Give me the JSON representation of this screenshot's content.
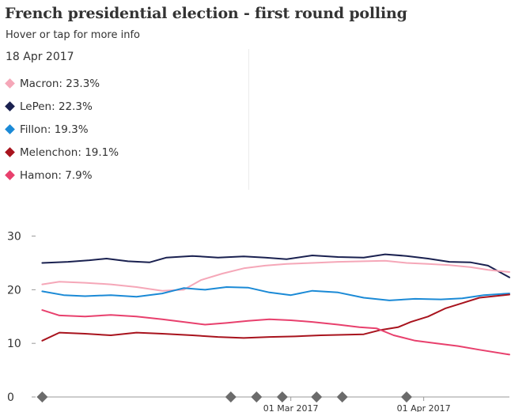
{
  "header": {
    "title": "French presidential election - first round polling",
    "subtitle": "Hover or tap for more info",
    "date": "18 Apr 2017"
  },
  "legend": [
    {
      "name": "Macron",
      "label": "Macron: 23.3%",
      "color": "#f5a7b8"
    },
    {
      "name": "LePen",
      "label": "LePen: 22.3%",
      "color": "#1a2150"
    },
    {
      "name": "Fillon",
      "label": "Fillon: 19.3%",
      "color": "#1b8ad6"
    },
    {
      "name": "Melenchon",
      "label": "Melenchon: 19.1%",
      "color": "#a8131d"
    },
    {
      "name": "Hamon",
      "label": "Hamon: 7.9%",
      "color": "#e8406d"
    }
  ],
  "chart_data": {
    "type": "line",
    "ylim": [
      0,
      32
    ],
    "yticks": [
      "0",
      "10",
      "20",
      "30"
    ],
    "xlim": [
      "2017-01-01",
      "2017-04-21"
    ],
    "xticks": [
      {
        "date": "2017-03-01",
        "label": "01 Mar 2017"
      },
      {
        "date": "2017-04-01",
        "label": "01 Apr 2017"
      }
    ],
    "event_markers": [
      "2017-01-02",
      "2017-02-15",
      "2017-02-21",
      "2017-02-27",
      "2017-03-07",
      "2017-03-13",
      "2017-03-28"
    ],
    "series": [
      {
        "name": "LePen",
        "color": "#1a2150",
        "points": [
          [
            "2017-01-02",
            25.0
          ],
          [
            "2017-01-08",
            25.2
          ],
          [
            "2017-01-13",
            25.5
          ],
          [
            "2017-01-17",
            25.8
          ],
          [
            "2017-01-22",
            25.3
          ],
          [
            "2017-01-27",
            25.1
          ],
          [
            "2017-01-31",
            26.0
          ],
          [
            "2017-02-06",
            26.3
          ],
          [
            "2017-02-12",
            26.0
          ],
          [
            "2017-02-18",
            26.2
          ],
          [
            "2017-02-23",
            26.0
          ],
          [
            "2017-02-28",
            25.7
          ],
          [
            "2017-03-06",
            26.4
          ],
          [
            "2017-03-12",
            26.1
          ],
          [
            "2017-03-18",
            26.0
          ],
          [
            "2017-03-23",
            26.6
          ],
          [
            "2017-03-28",
            26.3
          ],
          [
            "2017-04-02",
            25.8
          ],
          [
            "2017-04-07",
            25.2
          ],
          [
            "2017-04-12",
            25.1
          ],
          [
            "2017-04-16",
            24.5
          ],
          [
            "2017-04-21",
            22.3
          ]
        ]
      },
      {
        "name": "Macron",
        "color": "#f5a7b8",
        "points": [
          [
            "2017-01-02",
            21.0
          ],
          [
            "2017-01-06",
            21.5
          ],
          [
            "2017-01-12",
            21.3
          ],
          [
            "2017-01-18",
            21.0
          ],
          [
            "2017-01-24",
            20.5
          ],
          [
            "2017-01-30",
            19.8
          ],
          [
            "2017-02-04",
            20.0
          ],
          [
            "2017-02-08",
            21.8
          ],
          [
            "2017-02-13",
            23.0
          ],
          [
            "2017-02-18",
            24.0
          ],
          [
            "2017-02-23",
            24.5
          ],
          [
            "2017-02-28",
            24.8
          ],
          [
            "2017-03-06",
            25.0
          ],
          [
            "2017-03-12",
            25.2
          ],
          [
            "2017-03-18",
            25.3
          ],
          [
            "2017-03-23",
            25.4
          ],
          [
            "2017-03-28",
            25.0
          ],
          [
            "2017-04-02",
            24.8
          ],
          [
            "2017-04-07",
            24.6
          ],
          [
            "2017-04-12",
            24.2
          ],
          [
            "2017-04-16",
            23.7
          ],
          [
            "2017-04-21",
            23.3
          ]
        ]
      },
      {
        "name": "Fillon",
        "color": "#1b8ad6",
        "points": [
          [
            "2017-01-02",
            19.7
          ],
          [
            "2017-01-07",
            19.0
          ],
          [
            "2017-01-12",
            18.8
          ],
          [
            "2017-01-18",
            19.0
          ],
          [
            "2017-01-24",
            18.7
          ],
          [
            "2017-01-30",
            19.3
          ],
          [
            "2017-02-04",
            20.3
          ],
          [
            "2017-02-09",
            20.0
          ],
          [
            "2017-02-14",
            20.5
          ],
          [
            "2017-02-19",
            20.4
          ],
          [
            "2017-02-24",
            19.5
          ],
          [
            "2017-03-01",
            19.0
          ],
          [
            "2017-03-06",
            19.8
          ],
          [
            "2017-03-12",
            19.5
          ],
          [
            "2017-03-18",
            18.5
          ],
          [
            "2017-03-24",
            18.0
          ],
          [
            "2017-03-30",
            18.3
          ],
          [
            "2017-04-05",
            18.2
          ],
          [
            "2017-04-10",
            18.4
          ],
          [
            "2017-04-15",
            19.0
          ],
          [
            "2017-04-21",
            19.3
          ]
        ]
      },
      {
        "name": "Melenchon",
        "color": "#a8131d",
        "points": [
          [
            "2017-01-02",
            10.5
          ],
          [
            "2017-01-06",
            12.0
          ],
          [
            "2017-01-12",
            11.8
          ],
          [
            "2017-01-18",
            11.5
          ],
          [
            "2017-01-24",
            12.0
          ],
          [
            "2017-01-30",
            11.8
          ],
          [
            "2017-02-06",
            11.5
          ],
          [
            "2017-02-12",
            11.2
          ],
          [
            "2017-02-18",
            11.0
          ],
          [
            "2017-02-24",
            11.2
          ],
          [
            "2017-03-02",
            11.3
          ],
          [
            "2017-03-08",
            11.5
          ],
          [
            "2017-03-14",
            11.6
          ],
          [
            "2017-03-18",
            11.7
          ],
          [
            "2017-03-22",
            12.5
          ],
          [
            "2017-03-26",
            13.0
          ],
          [
            "2017-03-29",
            14.0
          ],
          [
            "2017-04-02",
            15.0
          ],
          [
            "2017-04-06",
            16.5
          ],
          [
            "2017-04-10",
            17.5
          ],
          [
            "2017-04-14",
            18.5
          ],
          [
            "2017-04-21",
            19.1
          ]
        ]
      },
      {
        "name": "Hamon",
        "color": "#e8406d",
        "points": [
          [
            "2017-01-02",
            16.2
          ],
          [
            "2017-01-06",
            15.2
          ],
          [
            "2017-01-12",
            15.0
          ],
          [
            "2017-01-18",
            15.3
          ],
          [
            "2017-01-24",
            15.0
          ],
          [
            "2017-01-30",
            14.5
          ],
          [
            "2017-02-04",
            14.0
          ],
          [
            "2017-02-09",
            13.5
          ],
          [
            "2017-02-14",
            13.8
          ],
          [
            "2017-02-19",
            14.2
          ],
          [
            "2017-02-24",
            14.5
          ],
          [
            "2017-03-01",
            14.3
          ],
          [
            "2017-03-06",
            14.0
          ],
          [
            "2017-03-12",
            13.5
          ],
          [
            "2017-03-17",
            13.0
          ],
          [
            "2017-03-21",
            12.8
          ],
          [
            "2017-03-25",
            11.5
          ],
          [
            "2017-03-30",
            10.5
          ],
          [
            "2017-04-04",
            10.0
          ],
          [
            "2017-04-09",
            9.5
          ],
          [
            "2017-04-14",
            8.8
          ],
          [
            "2017-04-21",
            7.9
          ]
        ]
      }
    ]
  }
}
